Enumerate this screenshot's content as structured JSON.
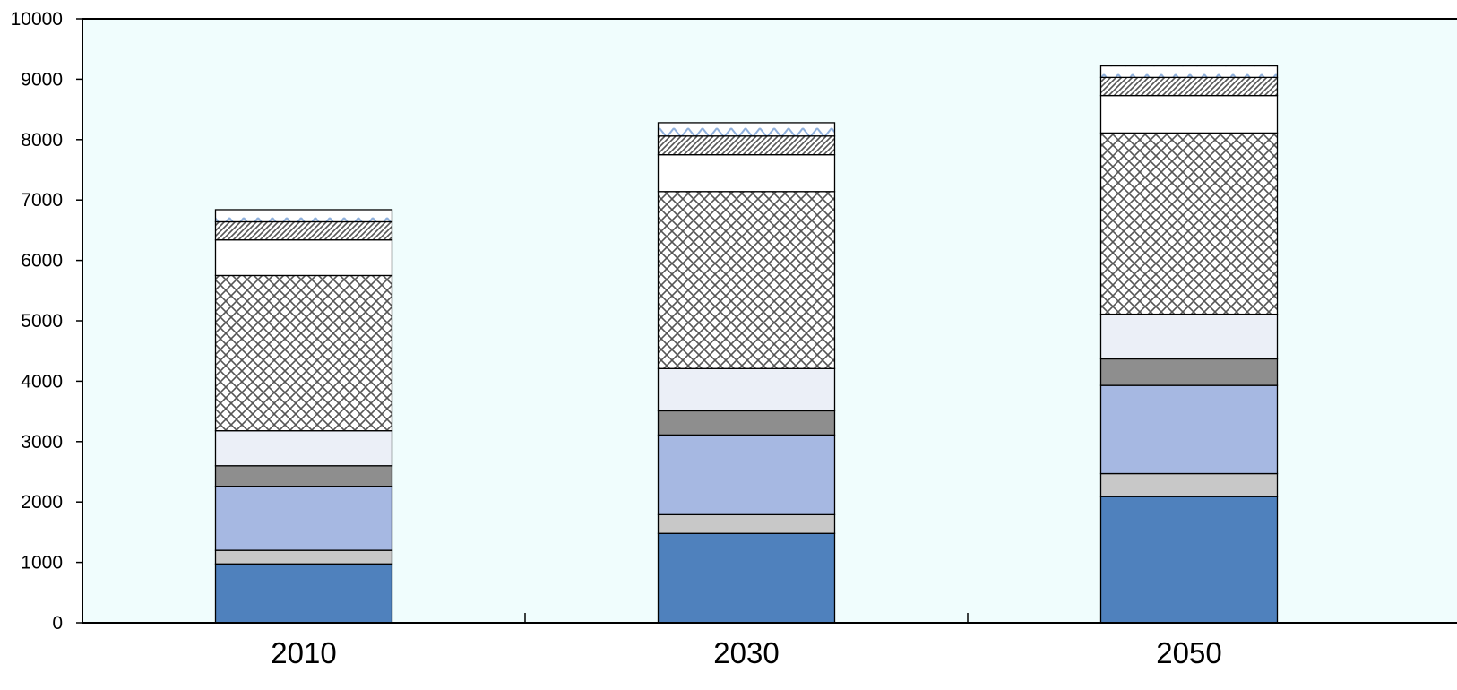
{
  "chart_data": {
    "type": "bar",
    "stacked": true,
    "categories": [
      "2010",
      "2030",
      "2050"
    ],
    "ylim": [
      0,
      10000
    ],
    "yticks": [
      0,
      1000,
      2000,
      3000,
      4000,
      5000,
      6000,
      7000,
      8000,
      9000,
      10000
    ],
    "title": "",
    "xlabel": "",
    "ylabel": "",
    "grid": false,
    "legend": false,
    "background_color": "#f0fdfd",
    "series": [
      {
        "values": [
          975,
          1480,
          2090
        ],
        "color": "#4f81bd",
        "pattern": "solid"
      },
      {
        "values": [
          225,
          310,
          380
        ],
        "color": "#c8c8c8",
        "pattern": "solid"
      },
      {
        "values": [
          1060,
          1320,
          1460
        ],
        "color": "#a6b8e2",
        "pattern": "solid"
      },
      {
        "values": [
          340,
          400,
          440
        ],
        "color": "#8e8e8e",
        "pattern": "solid"
      },
      {
        "values": [
          580,
          700,
          740
        ],
        "color": "#ebeff7",
        "pattern": "solid"
      },
      {
        "values": [
          2570,
          2930,
          3000
        ],
        "color": "#888888",
        "pattern": "crosshatch"
      },
      {
        "values": [
          590,
          610,
          620
        ],
        "color": "#ffffff",
        "pattern": "solid"
      },
      {
        "values": [
          300,
          310,
          300
        ],
        "color": "#666666",
        "pattern": "diagonal"
      },
      {
        "values": [
          200,
          220,
          190
        ],
        "color": "#8fb0dc",
        "pattern": "zigzag"
      }
    ]
  }
}
